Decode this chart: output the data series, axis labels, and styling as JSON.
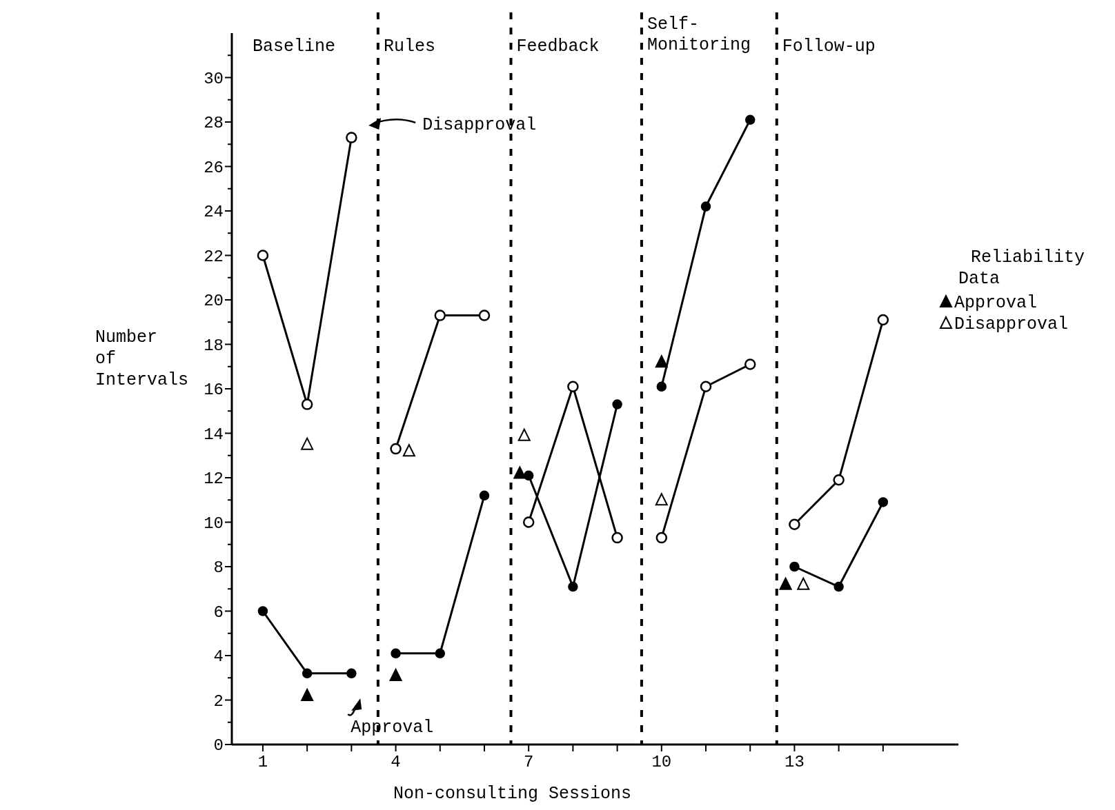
{
  "chart_data": {
    "type": "line",
    "xlabel": "Non-consulting Sessions",
    "ylabel": "Number of Intervals",
    "legend_title": "Reliability Data",
    "legend": "right",
    "grid": false,
    "line_style": "solid",
    "xlim": [
      0.3,
      16.7
    ],
    "xticks": [
      1,
      {
        "value": 2,
        "label": null
      },
      {
        "value": 3,
        "label": null
      },
      4,
      {
        "value": 5,
        "label": null
      },
      {
        "value": 6,
        "label": null
      },
      7,
      {
        "value": 8,
        "label": null
      },
      {
        "value": 9,
        "label": null
      },
      10,
      {
        "value": 11,
        "label": null
      },
      {
        "value": 12,
        "label": null
      },
      13,
      {
        "value": 14,
        "label": null
      },
      {
        "value": 15,
        "label": null
      }
    ],
    "ylim": [
      0,
      32
    ],
    "yticks": [
      0,
      {
        "value": 1,
        "label": null
      },
      2,
      {
        "value": 3,
        "label": null
      },
      4,
      {
        "value": 5,
        "label": null
      },
      6,
      {
        "value": 7,
        "label": null
      },
      8,
      {
        "value": 9,
        "label": null
      },
      10,
      {
        "value": 11,
        "label": null
      },
      12,
      {
        "value": 13,
        "label": null
      },
      14,
      {
        "value": 15,
        "label": null
      },
      16,
      {
        "value": 17,
        "label": null
      },
      18,
      {
        "value": 19,
        "label": null
      },
      20,
      {
        "value": 21,
        "label": null
      },
      22,
      {
        "value": 23,
        "label": null
      },
      24,
      {
        "value": 25,
        "label": null
      },
      26,
      {
        "value": 27,
        "label": null
      },
      28,
      {
        "value": 29,
        "label": null
      },
      30,
      {
        "value": 31,
        "label": null
      }
    ],
    "x": [
      1,
      2,
      3,
      4,
      5,
      6,
      7,
      8,
      9,
      10,
      11,
      12,
      13,
      14,
      15
    ],
    "series": [
      {
        "color": "#000000",
        "marker": "circle",
        "values": [
          6,
          3.2,
          3.2,
          4.1,
          4.1,
          11.2,
          12.1,
          7.1,
          15.3,
          16.1,
          24.2,
          28.1,
          8,
          7.1,
          10.9
        ]
      },
      {
        "color": "#000000",
        "marker": "circle",
        "values": [
          22,
          15.3,
          27.3,
          13.3,
          19.3,
          19.3,
          10,
          16.1,
          9.3,
          9.3,
          16.1,
          17.1,
          9.9,
          11.9,
          19.1
        ]
      },
      {
        "type": "scatter",
        "name": "Approval",
        "color": "#000000",
        "marker": "triangle",
        "x": [
          2,
          4,
          6.8,
          10,
          12.8
        ],
        "values": [
          2.2,
          3.1,
          12.2,
          17.2,
          7.2
        ]
      },
      {
        "type": "scatter",
        "name": "Disapproval",
        "color": "#000000",
        "marker": "triangle",
        "x": [
          2,
          4.3,
          6.9,
          10,
          13.2
        ],
        "values": [
          13.5,
          13.2,
          13.9,
          11,
          7.2
        ]
      }
    ],
    "ref_lines": [
      {
        "axis": "x",
        "value": 3.6,
        "line_style": "dashed"
      },
      {
        "axis": "x",
        "value": 6.6,
        "line_style": "dashed"
      },
      {
        "axis": "x",
        "value": 9.55,
        "line_style": "dashed"
      },
      {
        "axis": "x",
        "value": 12.6,
        "line_style": "dashed"
      }
    ],
    "annotations": [
      "Baseline",
      "Rules",
      "Feedback",
      "Self-Monitoring",
      "Follow-up",
      "Disapproval",
      "Approval"
    ]
  }
}
